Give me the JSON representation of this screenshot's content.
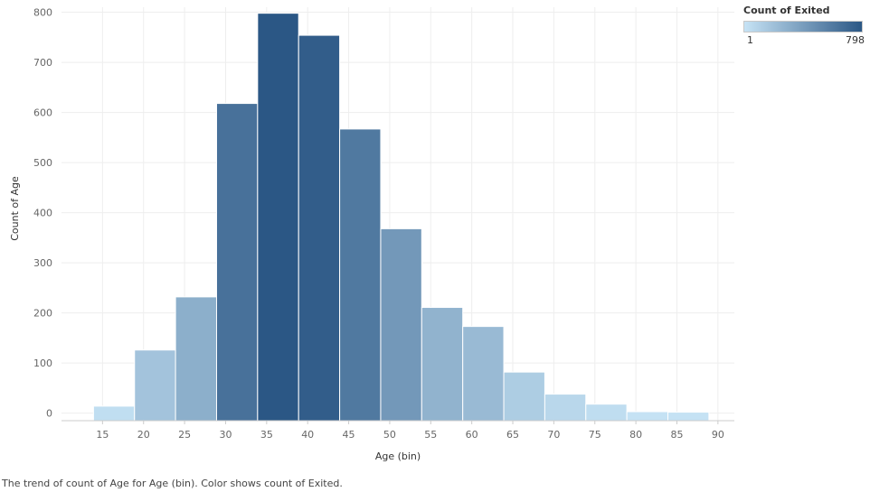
{
  "chart_data": {
    "type": "bar",
    "xlabel": "Age (bin)",
    "ylabel": "Count of Age",
    "bin_width": 5,
    "x_ticks": [
      15,
      20,
      25,
      30,
      35,
      40,
      45,
      50,
      55,
      60,
      65,
      70,
      75,
      80,
      85,
      90
    ],
    "y_ticks": [
      0,
      100,
      200,
      300,
      400,
      500,
      600,
      700,
      800
    ],
    "ylim": [
      -15,
      810
    ],
    "bins": [
      15,
      20,
      25,
      30,
      35,
      40,
      45,
      50,
      55,
      60,
      65,
      70,
      75,
      80,
      85
    ],
    "values": [
      14,
      126,
      232,
      618,
      798,
      754,
      567,
      368,
      211,
      173,
      82,
      38,
      18,
      3,
      2
    ],
    "color_values": [
      14,
      126,
      232,
      618,
      798,
      754,
      567,
      368,
      211,
      173,
      82,
      38,
      18,
      3,
      2
    ],
    "color_scale": {
      "min": 1,
      "max": 798,
      "low_color": "#c6e3f5",
      "high_color": "#2b5785"
    },
    "grid": true
  },
  "legend": {
    "title": "Count of Exited",
    "min_label": "1",
    "max_label": "798"
  },
  "caption": "The trend of count of Age for Age (bin).  Color shows count of Exited."
}
